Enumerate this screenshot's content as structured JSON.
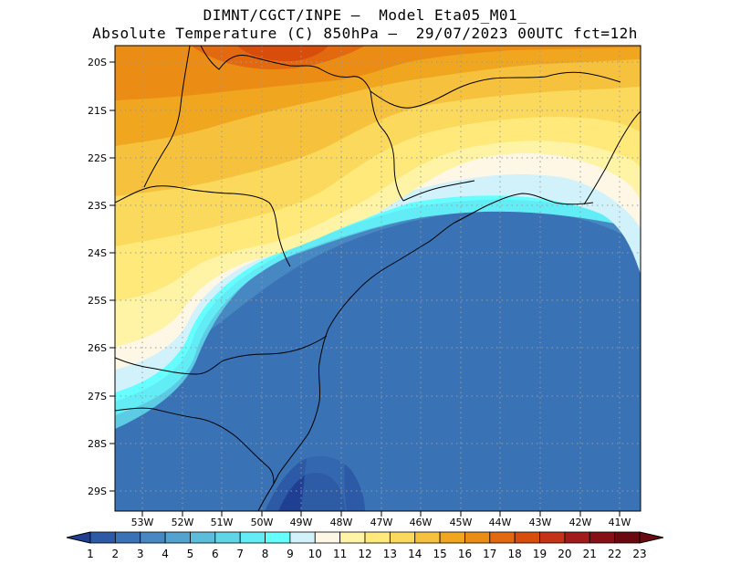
{
  "header": {
    "line1": "DIMNT/CGCT/INPE –  Model Eta05_M01_",
    "line2": "Absolute Temperature (C) 850hPa –  29/07/2023 00UTC fct=12h"
  },
  "map": {
    "lat_labels": [
      "20S",
      "21S",
      "22S",
      "23S",
      "24S",
      "25S",
      "26S",
      "27S",
      "28S",
      "29S"
    ],
    "lon_labels": [
      "53W",
      "52W",
      "51W",
      "50W",
      "49W",
      "48W",
      "47W",
      "46W",
      "45W",
      "44W",
      "43W",
      "42W",
      "41W"
    ]
  },
  "colorbar": {
    "labels": [
      "1",
      "2",
      "3",
      "4",
      "5",
      "6",
      "7",
      "8",
      "9",
      "10",
      "11",
      "12",
      "13",
      "14",
      "15",
      "16",
      "17",
      "18",
      "19",
      "20",
      "21",
      "22",
      "23"
    ],
    "colors": [
      "#1f3f93",
      "#2c5aa6",
      "#3a72b6",
      "#4788c3",
      "#53a2cf",
      "#5cbcdb",
      "#5fd6e8",
      "#62ecf5",
      "#66ffff",
      "#d2f2fb",
      "#fff7e6",
      "#fff3a6",
      "#ffe97a",
      "#fbd95d",
      "#f6c23e",
      "#f0a71f",
      "#eb8d14",
      "#e2690f",
      "#d84d0c",
      "#c43217",
      "#a21b1b",
      "#861015",
      "#6a0a10"
    ]
  },
  "icons": {
    "left_arrow": "colorbar-left-arrow-icon",
    "right_arrow": "colorbar-right-arrow-icon"
  }
}
